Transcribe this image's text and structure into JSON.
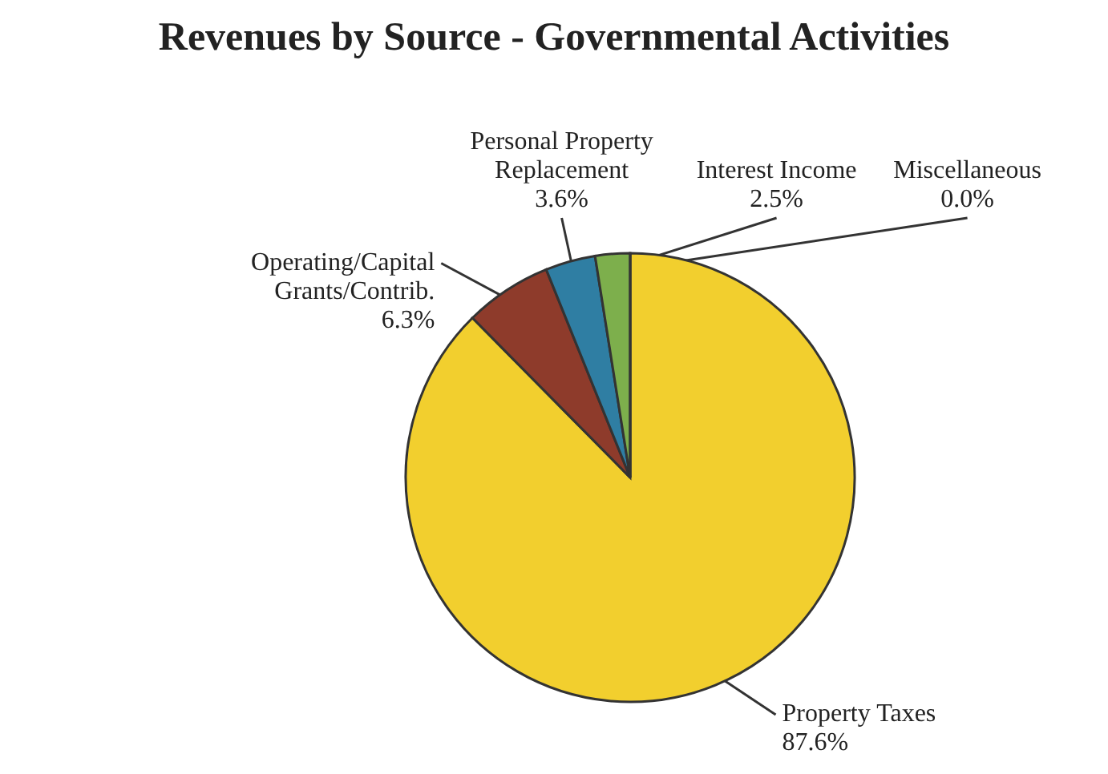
{
  "chart_data": {
    "type": "pie",
    "title": "Revenues by Source - Governmental Activities",
    "categories": [
      "Property Taxes",
      "Operating/Capital Grants/Contrib.",
      "Personal Property Replacement",
      "Interest Income",
      "Miscellaneous"
    ],
    "values": [
      87.6,
      6.3,
      3.6,
      2.5,
      0.0
    ],
    "value_labels": [
      "87.6%",
      "6.3%",
      "3.6%",
      "2.5%",
      "0.0%"
    ],
    "colors": [
      "#f2cf2e",
      "#8e3b2b",
      "#2f7ea3",
      "#7daf4c",
      "#b5b5b5"
    ],
    "legend": false
  }
}
